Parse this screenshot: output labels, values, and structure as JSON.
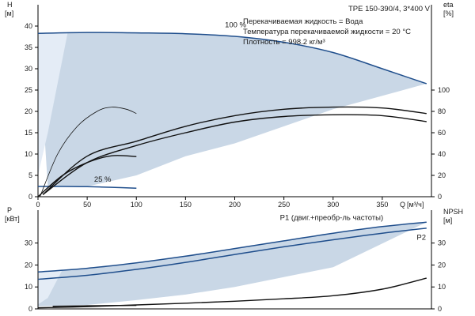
{
  "colors": {
    "primary": "#1f4e8c",
    "envelope": "#c9d7e6",
    "envelope_light": "#e4ecf6",
    "axis": "#000000",
    "curve": "#111111"
  },
  "chart_data": [
    {
      "id": "h-q",
      "type": "line",
      "title": "TPE 150-390/4, 3*400 V",
      "annotations": [
        "Перекачиваемая жидкость = Вода",
        "Температура перекачиваемой жидкости = 20 °C",
        "Плотность = 998.2 кг/м³"
      ],
      "ylabel_left": "H",
      "yunit_left": "[м]",
      "ylabel_right": "eta",
      "yunit_right": "[%]",
      "xlabel": "Q",
      "xunit": "[м³/ч]",
      "xlim": [
        0,
        400
      ],
      "ylim": [
        0,
        45
      ],
      "ylim_right": [
        0,
        180
      ],
      "xticks": [
        0,
        50,
        100,
        150,
        200,
        250,
        300,
        350
      ],
      "yticks": [
        0,
        5,
        10,
        15,
        20,
        25,
        30,
        35,
        40
      ],
      "yticks_right": [
        0,
        20,
        40,
        60,
        80,
        100
      ],
      "envelope_upper": [
        [
          0,
          38.3
        ],
        [
          50,
          38.5
        ],
        [
          100,
          38.4
        ],
        [
          150,
          38.2
        ],
        [
          200,
          37.6
        ],
        [
          250,
          36.2
        ],
        [
          300,
          33.8
        ],
        [
          350,
          30.0
        ],
        [
          395,
          26.5
        ]
      ],
      "envelope_lower": [
        [
          395,
          26.5
        ],
        [
          300,
          20.5
        ],
        [
          200,
          12.5
        ],
        [
          150,
          9.5
        ],
        [
          100,
          5.0
        ],
        [
          50,
          2.4
        ],
        [
          10,
          2.4
        ]
      ],
      "envelope_light": [
        [
          0,
          38.3
        ],
        [
          30,
          38.3
        ],
        [
          10,
          15
        ],
        [
          3,
          8
        ],
        [
          0,
          5
        ]
      ],
      "series": [
        {
          "name": "100 %",
          "points": [
            [
              0,
              38.3
            ],
            [
              50,
              38.5
            ],
            [
              100,
              38.4
            ],
            [
              150,
              38.2
            ],
            [
              200,
              37.6
            ],
            [
              250,
              36.2
            ],
            [
              300,
              33.8
            ],
            [
              350,
              30.0
            ],
            [
              395,
              26.5
            ]
          ]
        },
        {
          "name": "25 %",
          "points": [
            [
              0,
              2.4
            ],
            [
              25,
              2.4
            ],
            [
              50,
              2.35
            ],
            [
              75,
              2.2
            ],
            [
              100,
              2.0
            ]
          ]
        },
        {
          "name": "",
          "points": [
            [
              2,
              0
            ],
            [
              20,
              10
            ],
            [
              40,
              16.5
            ],
            [
              60,
              20
            ],
            [
              75,
              21
            ],
            [
              90,
              20.5
            ],
            [
              100,
              19.5
            ]
          ]
        },
        {
          "name": "",
          "points": [
            [
              0,
              0
            ],
            [
              25,
              5
            ],
            [
              50,
              8
            ],
            [
              75,
              9.6
            ],
            [
              100,
              9.4
            ]
          ]
        },
        {
          "name": "",
          "points": [
            [
              5,
              0.5
            ],
            [
              50,
              9.5
            ],
            [
              100,
              13
            ],
            [
              150,
              16.5
            ],
            [
              200,
              19
            ],
            [
              250,
              20.5
            ],
            [
              300,
              21
            ],
            [
              350,
              20.8
            ],
            [
              395,
              19.5
            ]
          ]
        },
        {
          "name": "",
          "points": [
            [
              5,
              0.5
            ],
            [
              50,
              8
            ],
            [
              100,
              12
            ],
            [
              150,
              15
            ],
            [
              200,
              17.5
            ],
            [
              250,
              18.8
            ],
            [
              300,
              19.2
            ],
            [
              350,
              19.0
            ],
            [
              395,
              17.6
            ]
          ]
        }
      ],
      "labels": [
        {
          "text": "100 %",
          "x": 190,
          "y": 39.7
        },
        {
          "text": "25 %",
          "x": 57,
          "y": 3.5
        }
      ]
    },
    {
      "id": "p-q",
      "type": "line",
      "ylabel_left": "P",
      "yunit_left": "[кВт]",
      "ylabel_right": "NPSH",
      "yunit_right": "[м]",
      "xlim": [
        0,
        400
      ],
      "ylim": [
        0,
        45
      ],
      "ylim_right": [
        0,
        45
      ],
      "yticks": [
        0,
        10,
        20,
        30
      ],
      "yticks_right": [
        0,
        10,
        20,
        30
      ],
      "envelope_upper": [
        [
          0,
          16.8
        ],
        [
          50,
          18.5
        ],
        [
          100,
          21
        ],
        [
          150,
          24
        ],
        [
          200,
          27.5
        ],
        [
          250,
          31
        ],
        [
          300,
          34.5
        ],
        [
          350,
          37.5
        ],
        [
          395,
          39.5
        ]
      ],
      "envelope_lower": [
        [
          395,
          39.5
        ],
        [
          300,
          19
        ],
        [
          200,
          10
        ],
        [
          150,
          6.5
        ],
        [
          100,
          4
        ],
        [
          50,
          1.8
        ],
        [
          0,
          1.2
        ]
      ],
      "envelope_light": [
        [
          0,
          16.8
        ],
        [
          25,
          18
        ],
        [
          10,
          5
        ],
        [
          0,
          2
        ]
      ],
      "series": [
        {
          "name": "P1 (двиг.+преобр-ль частоты)",
          "points": [
            [
              0,
              16.8
            ],
            [
              50,
              18.5
            ],
            [
              100,
              21
            ],
            [
              150,
              24
            ],
            [
              200,
              27.5
            ],
            [
              250,
              31
            ],
            [
              300,
              34.5
            ],
            [
              350,
              37.5
            ],
            [
              395,
              39.5
            ]
          ]
        },
        {
          "name": "P2",
          "points": [
            [
              0,
              13.5
            ],
            [
              50,
              15.3
            ],
            [
              100,
              18
            ],
            [
              150,
              21.2
            ],
            [
              200,
              24.8
            ],
            [
              250,
              28.3
            ],
            [
              300,
              31.5
            ],
            [
              350,
              34.5
            ],
            [
              395,
              36.8
            ]
          ]
        },
        {
          "name": "",
          "points": [
            [
              0,
              0.5
            ],
            [
              50,
              1.0
            ],
            [
              100,
              1.8
            ],
            [
              150,
              2.6
            ],
            [
              200,
              3.5
            ],
            [
              250,
              4.6
            ],
            [
              300,
              6.0
            ],
            [
              350,
              9.0
            ],
            [
              395,
              14.0
            ]
          ]
        },
        {
          "name": "",
          "points": [
            [
              15,
              1.2
            ],
            [
              50,
              1.4
            ],
            [
              100,
              1.6
            ]
          ]
        }
      ],
      "labels": [
        {
          "text": "P1 (двиг.+преобр-ль частоты)",
          "x": 246,
          "y": 40.5
        },
        {
          "text": "P2",
          "x": 385,
          "y": 31.5
        }
      ]
    }
  ]
}
